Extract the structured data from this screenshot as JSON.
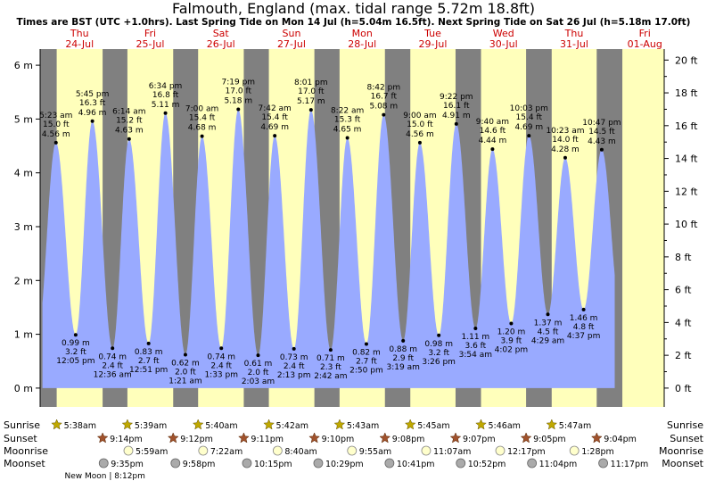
{
  "title": "Falmouth, England (max. tidal range 5.72m 18.8ft)",
  "subtitle": "Times are BST (UTC +1.0hrs). Last Spring Tide on Mon 14 Jul (h=5.04m 16.5ft). Next Spring Tide on Sat 26 Jul (h=5.18m 17.0ft)",
  "colors": {
    "night": "#808080",
    "day": "#ffffbb",
    "water": "#99aaff",
    "date_label": "#cc0000",
    "sun_icon": "#bfa800",
    "sunset_icon": "#a0522d",
    "moonrise_icon": "#ffffcc",
    "moonset_icon": "#aaaaaa"
  },
  "chart_data": {
    "type": "area",
    "y_left_ticks": [
      "0 m",
      "1 m",
      "2 m",
      "3 m",
      "4 m",
      "5 m",
      "6 m"
    ],
    "y_right_ticks": [
      "0 ft",
      "2 ft",
      "4 ft",
      "6 ft",
      "8 ft",
      "10 ft",
      "12 ft",
      "14 ft",
      "16 ft",
      "18 ft",
      "20 ft"
    ],
    "y_range_m": [
      -0.35,
      6.3
    ],
    "x_range_hours": [
      0,
      212
    ],
    "days": [
      {
        "dow": "Thu",
        "date": "24-Jul"
      },
      {
        "dow": "Fri",
        "date": "25-Jul"
      },
      {
        "dow": "Sat",
        "date": "26-Jul"
      },
      {
        "dow": "Sun",
        "date": "27-Jul"
      },
      {
        "dow": "Mon",
        "date": "28-Jul"
      },
      {
        "dow": "Tue",
        "date": "29-Jul"
      },
      {
        "dow": "Wed",
        "date": "30-Jul"
      },
      {
        "dow": "Thu",
        "date": "31-Jul"
      },
      {
        "dow": "Fri",
        "date": "01-Aug"
      }
    ],
    "tides": [
      {
        "type": "high",
        "time": "5:23 am",
        "ft": "15.0 ft",
        "m": 4.56,
        "m_label": "4.56 m",
        "hour": 5.38
      },
      {
        "type": "low",
        "time": "12:05 pm",
        "ft": "3.2 ft",
        "m": 0.99,
        "m_label": "0.99 m",
        "hour": 12.08
      },
      {
        "type": "high",
        "time": "5:45 pm",
        "ft": "16.3 ft",
        "m": 4.96,
        "m_label": "4.96 m",
        "hour": 17.75
      },
      {
        "type": "low",
        "time": "12:36 am",
        "ft": "2.4 ft",
        "m": 0.74,
        "m_label": "0.74 m",
        "hour": 24.6
      },
      {
        "type": "high",
        "time": "6:14 am",
        "ft": "15.2 ft",
        "m": 4.63,
        "m_label": "4.63 m",
        "hour": 30.23
      },
      {
        "type": "low",
        "time": "12:51 pm",
        "ft": "2.7 ft",
        "m": 0.83,
        "m_label": "0.83 m",
        "hour": 36.85
      },
      {
        "type": "high",
        "time": "6:34 pm",
        "ft": "16.8 ft",
        "m": 5.11,
        "m_label": "5.11 m",
        "hour": 42.57
      },
      {
        "type": "low",
        "time": "1:21 am",
        "ft": "2.0 ft",
        "m": 0.62,
        "m_label": "0.62 m",
        "hour": 49.35
      },
      {
        "type": "high",
        "time": "7:00 am",
        "ft": "15.4 ft",
        "m": 4.68,
        "m_label": "4.68 m",
        "hour": 55.0
      },
      {
        "type": "low",
        "time": "1:33 pm",
        "ft": "2.4 ft",
        "m": 0.74,
        "m_label": "0.74 m",
        "hour": 61.55
      },
      {
        "type": "high",
        "time": "7:19 pm",
        "ft": "17.0 ft",
        "m": 5.18,
        "m_label": "5.18 m",
        "hour": 67.32
      },
      {
        "type": "low",
        "time": "2:03 am",
        "ft": "2.0 ft",
        "m": 0.61,
        "m_label": "0.61 m",
        "hour": 74.05
      },
      {
        "type": "high",
        "time": "7:42 am",
        "ft": "15.4 ft",
        "m": 4.69,
        "m_label": "4.69 m",
        "hour": 79.7
      },
      {
        "type": "low",
        "time": "2:13 pm",
        "ft": "2.4 ft",
        "m": 0.73,
        "m_label": "0.73 m",
        "hour": 86.22
      },
      {
        "type": "high",
        "time": "8:01 pm",
        "ft": "17.0 ft",
        "m": 5.17,
        "m_label": "5.17 m",
        "hour": 92.02
      },
      {
        "type": "low",
        "time": "2:42 am",
        "ft": "2.3 ft",
        "m": 0.71,
        "m_label": "0.71 m",
        "hour": 98.7
      },
      {
        "type": "high",
        "time": "8:22 am",
        "ft": "15.3 ft",
        "m": 4.65,
        "m_label": "4.65 m",
        "hour": 104.37
      },
      {
        "type": "low",
        "time": "2:50 pm",
        "ft": "2.7 ft",
        "m": 0.82,
        "m_label": "0.82 m",
        "hour": 110.83
      },
      {
        "type": "high",
        "time": "8:42 pm",
        "ft": "16.7 ft",
        "m": 5.08,
        "m_label": "5.08 m",
        "hour": 116.7
      },
      {
        "type": "low",
        "time": "3:19 am",
        "ft": "2.9 ft",
        "m": 0.88,
        "m_label": "0.88 m",
        "hour": 123.32
      },
      {
        "type": "high",
        "time": "9:00 am",
        "ft": "15.0 ft",
        "m": 4.56,
        "m_label": "4.56 m",
        "hour": 129.0
      },
      {
        "type": "low",
        "time": "3:26 pm",
        "ft": "3.2 ft",
        "m": 0.98,
        "m_label": "0.98 m",
        "hour": 135.43
      },
      {
        "type": "high",
        "time": "9:22 pm",
        "ft": "16.1 ft",
        "m": 4.91,
        "m_label": "4.91 m",
        "hour": 141.37
      },
      {
        "type": "low",
        "time": "3:54 am",
        "ft": "3.6 ft",
        "m": 1.11,
        "m_label": "1.11 m",
        "hour": 147.9
      },
      {
        "type": "high",
        "time": "9:40 am",
        "ft": "14.6 ft",
        "m": 4.44,
        "m_label": "4.44 m",
        "hour": 153.67
      },
      {
        "type": "low",
        "time": "4:02 pm",
        "ft": "3.9 ft",
        "m": 1.2,
        "m_label": "1.20 m",
        "hour": 160.03
      },
      {
        "type": "high",
        "time": "10:03 pm",
        "ft": "15.4 ft",
        "m": 4.69,
        "m_label": "4.69 m",
        "hour": 166.05
      },
      {
        "type": "low",
        "time": "4:29 am",
        "ft": "4.5 ft",
        "m": 1.37,
        "m_label": "1.37 m",
        "hour": 172.48
      },
      {
        "type": "high",
        "time": "10:23 am",
        "ft": "14.0 ft",
        "m": 4.28,
        "m_label": "4.28 m",
        "hour": 178.38
      },
      {
        "type": "low",
        "time": "4:37 pm",
        "ft": "4.8 ft",
        "m": 1.46,
        "m_label": "1.46 m",
        "hour": 184.62
      },
      {
        "type": "high",
        "time": "10:47 pm",
        "ft": "14.5 ft",
        "m": 4.43,
        "m_label": "4.43 m",
        "hour": 190.78
      }
    ],
    "sunrise": [
      "5:38am",
      "5:39am",
      "5:40am",
      "5:42am",
      "5:43am",
      "5:45am",
      "5:46am",
      "5:47am"
    ],
    "sunset": [
      "9:14pm",
      "9:12pm",
      "9:11pm",
      "9:10pm",
      "9:08pm",
      "9:07pm",
      "9:05pm",
      "9:04pm"
    ],
    "sunrise_hours": [
      5.63,
      29.65,
      53.67,
      77.7,
      101.72,
      125.75,
      149.77,
      173.78
    ],
    "sunset_hours": [
      21.23,
      45.2,
      69.18,
      93.17,
      117.13,
      141.12,
      165.08,
      189.07
    ],
    "moonrise": [
      {
        "time": "5:59am",
        "hour": 29.98
      },
      {
        "time": "7:22am",
        "hour": 55.37
      },
      {
        "time": "8:40am",
        "hour": 80.67
      },
      {
        "time": "9:55am",
        "hour": 105.92
      },
      {
        "time": "11:07am",
        "hour": 131.12
      },
      {
        "time": "12:17pm",
        "hour": 156.28
      },
      {
        "time": "1:28pm",
        "hour": 181.47
      }
    ],
    "moonset": [
      {
        "time": "9:35pm",
        "hour": 21.58
      },
      {
        "time": "9:58pm",
        "hour": 45.97
      },
      {
        "time": "10:15pm",
        "hour": 70.25
      },
      {
        "time": "10:29pm",
        "hour": 94.48
      },
      {
        "time": "10:41pm",
        "hour": 118.68
      },
      {
        "time": "10:52pm",
        "hour": 142.87
      },
      {
        "time": "11:04pm",
        "hour": 167.07
      },
      {
        "time": "11:17pm",
        "hour": 191.28
      }
    ],
    "new_moon": {
      "label": "New Moon",
      "time": "8:12pm",
      "hour": 20.2
    },
    "row_labels": {
      "sunrise": "Sunrise",
      "sunset": "Sunset",
      "moonrise": "Moonrise",
      "moonset": "Moonset"
    }
  }
}
